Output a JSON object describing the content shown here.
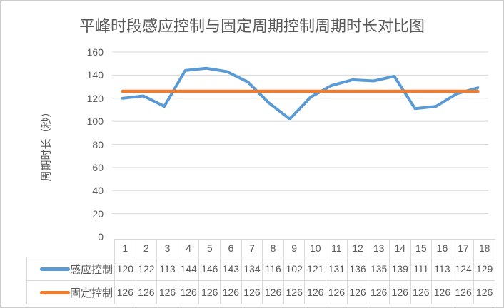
{
  "title": "平峰时段感应控制与固定周期控制周期时长对比图",
  "chart_data": {
    "type": "line",
    "title": "平峰时段感应控制与固定周期控制周期时长对比图",
    "categories": [
      "1",
      "2",
      "3",
      "4",
      "5",
      "6",
      "7",
      "8",
      "9",
      "10",
      "11",
      "12",
      "13",
      "14",
      "15",
      "16",
      "17",
      "18"
    ],
    "series": [
      {
        "name": "感应控制",
        "color": "#5B9BD5",
        "values": [
          120,
          122,
          113,
          144,
          146,
          143,
          134,
          116,
          102,
          121,
          131,
          136,
          135,
          139,
          111,
          113,
          124,
          129
        ]
      },
      {
        "name": "固定控制",
        "color": "#ED7D31",
        "values": [
          126,
          126,
          126,
          126,
          126,
          126,
          126,
          126,
          126,
          126,
          126,
          126,
          126,
          126,
          126,
          126,
          126,
          126
        ]
      }
    ],
    "xlabel": "",
    "ylabel": "周期时长（秒）",
    "ylim": [
      0,
      160
    ],
    "yticks": [
      0,
      20,
      40,
      60,
      80,
      100,
      120,
      140,
      160
    ],
    "grid": true,
    "legend_position": "data-table-left",
    "colors": {
      "gridline": "#D9D9D9",
      "axis_text": "#595959",
      "table_border": "#D9D9D9",
      "background": "#FFFFFF",
      "frame_border": "#CBCBCB"
    }
  }
}
